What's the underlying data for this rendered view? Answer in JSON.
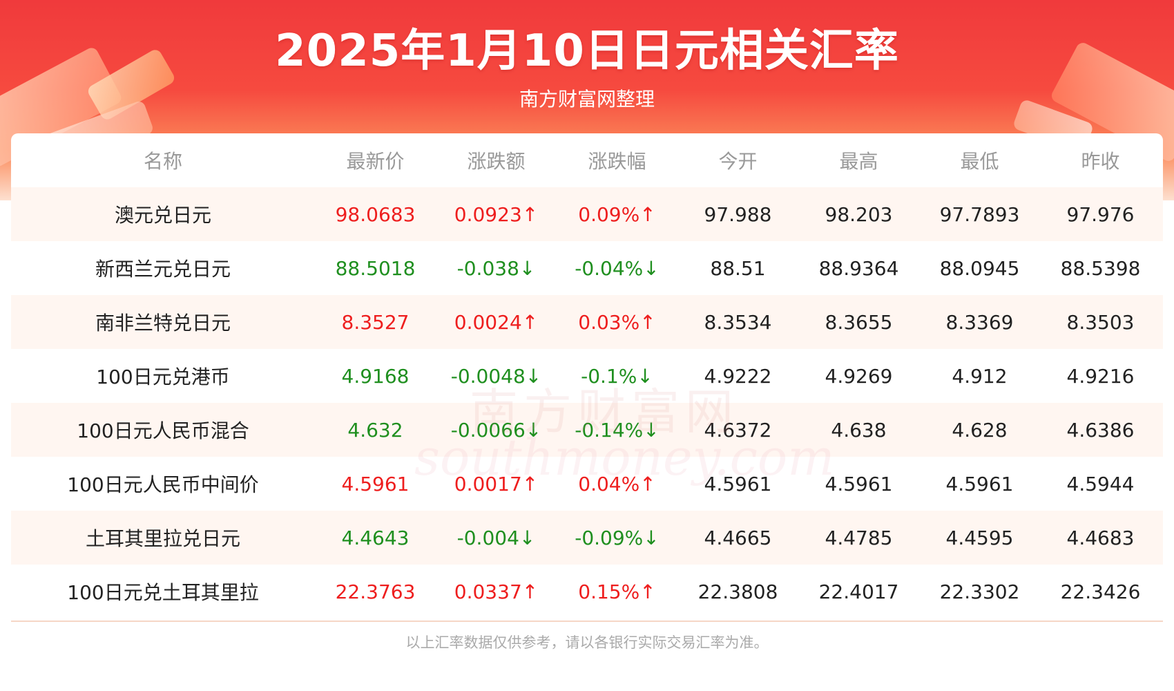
{
  "header": {
    "title": "2025年1月10日日元相关汇率",
    "subtitle": "南方财富网整理"
  },
  "table": {
    "columns": [
      "名称",
      "最新价",
      "涨跌额",
      "涨跌幅",
      "今开",
      "最高",
      "最低",
      "昨收"
    ],
    "rows": [
      {
        "name": "澳元兑日元",
        "latest": "98.0683",
        "change": "0.0923↑",
        "pct": "0.09%↑",
        "open": "97.988",
        "high": "98.203",
        "low": "97.7893",
        "prev": "97.976",
        "direction": "up"
      },
      {
        "name": "新西兰元兑日元",
        "latest": "88.5018",
        "change": "-0.038↓",
        "pct": "-0.04%↓",
        "open": "88.51",
        "high": "88.9364",
        "low": "88.0945",
        "prev": "88.5398",
        "direction": "down"
      },
      {
        "name": "南非兰特兑日元",
        "latest": "8.3527",
        "change": "0.0024↑",
        "pct": "0.03%↑",
        "open": "8.3534",
        "high": "8.3655",
        "low": "8.3369",
        "prev": "8.3503",
        "direction": "up"
      },
      {
        "name": "100日元兑港币",
        "latest": "4.9168",
        "change": "-0.0048↓",
        "pct": "-0.1%↓",
        "open": "4.9222",
        "high": "4.9269",
        "low": "4.912",
        "prev": "4.9216",
        "direction": "down"
      },
      {
        "name": "100日元人民币混合",
        "latest": "4.632",
        "change": "-0.0066↓",
        "pct": "-0.14%↓",
        "open": "4.6372",
        "high": "4.638",
        "low": "4.628",
        "prev": "4.6386",
        "direction": "down"
      },
      {
        "name": "100日元人民币中间价",
        "latest": "4.5961",
        "change": "0.0017↑",
        "pct": "0.04%↑",
        "open": "4.5961",
        "high": "4.5961",
        "low": "4.5961",
        "prev": "4.5944",
        "direction": "up"
      },
      {
        "name": "土耳其里拉兑日元",
        "latest": "4.4643",
        "change": "-0.004↓",
        "pct": "-0.09%↓",
        "open": "4.4665",
        "high": "4.4785",
        "low": "4.4595",
        "prev": "4.4683",
        "direction": "down"
      },
      {
        "name": "100日元兑土耳其里拉",
        "latest": "22.3763",
        "change": "0.0337↑",
        "pct": "0.15%↑",
        "open": "22.3808",
        "high": "22.4017",
        "low": "22.3302",
        "prev": "22.3426",
        "direction": "up"
      }
    ]
  },
  "watermark": {
    "cn": "南方财富网",
    "en": "southmoney.com"
  },
  "footer": {
    "note": "以上汇率数据仅供参考，请以各银行实际交易汇率为准。"
  },
  "colors": {
    "up": "#ee1e1e",
    "down": "#1f8f1f",
    "header_red": "#f03a3c"
  }
}
